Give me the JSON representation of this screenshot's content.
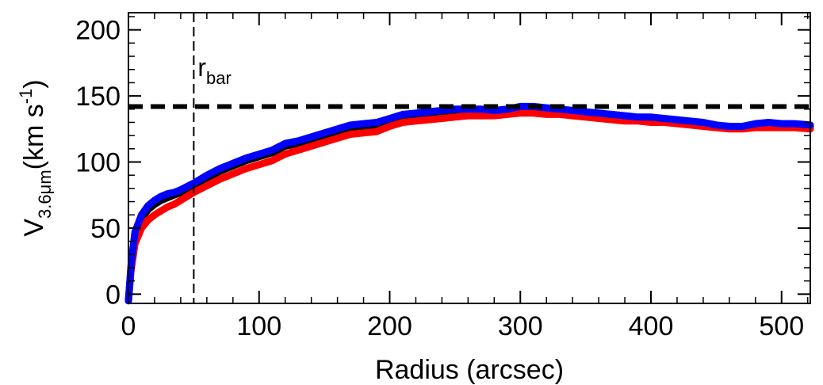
{
  "chart_data": {
    "type": "line",
    "title": "",
    "xlabel": "Radius (arcsec)",
    "ylabel": {
      "main": "V",
      "sub": "3.6μm",
      "unit_open": "(km s",
      "unit_sup": "-1",
      "unit_close": ")"
    },
    "xlim": [
      0,
      522
    ],
    "ylim": [
      -7,
      213
    ],
    "x_ticks": [
      0,
      100,
      200,
      300,
      400,
      500
    ],
    "y_ticks": [
      0,
      50,
      100,
      150,
      200
    ],
    "grid": false,
    "legend": "none",
    "series": [
      {
        "color": "#000000",
        "x": [
          0,
          2,
          5,
          10,
          15,
          20,
          25,
          30,
          35,
          40,
          50,
          60,
          70,
          80,
          90,
          100,
          110,
          120,
          130,
          140,
          150,
          160,
          170,
          180,
          190,
          200,
          210,
          220,
          230,
          240,
          250,
          260,
          270,
          280,
          290,
          300,
          310,
          320,
          330,
          340,
          350,
          360,
          370,
          380,
          390,
          400,
          410,
          420,
          430,
          440,
          450,
          460,
          470,
          480,
          490,
          500,
          510,
          522
        ],
        "y": [
          -5,
          20,
          45,
          57,
          64,
          68,
          71,
          73,
          75,
          77,
          82,
          88,
          93,
          97,
          101,
          104,
          107,
          112,
          114,
          117,
          120,
          123,
          126,
          127,
          128,
          131,
          134,
          135,
          136,
          137,
          138,
          139,
          139,
          138,
          139,
          141,
          141,
          140,
          139,
          138,
          137,
          136,
          135,
          134,
          133,
          133,
          132,
          131,
          130,
          129,
          127,
          126,
          126,
          128,
          129,
          128,
          128,
          127
        ]
      },
      {
        "color": "#ff0000",
        "x": [
          0,
          2,
          5,
          10,
          15,
          20,
          25,
          30,
          35,
          40,
          50,
          60,
          70,
          80,
          90,
          100,
          110,
          120,
          130,
          140,
          150,
          160,
          170,
          180,
          190,
          200,
          210,
          220,
          230,
          240,
          250,
          260,
          270,
          280,
          290,
          300,
          310,
          320,
          330,
          340,
          350,
          360,
          370,
          380,
          390,
          400,
          410,
          420,
          430,
          440,
          450,
          460,
          470,
          480,
          490,
          500,
          510,
          522
        ],
        "y": [
          -5,
          18,
          38,
          50,
          56,
          60,
          63,
          66,
          68,
          71,
          77,
          82,
          87,
          91,
          95,
          98,
          101,
          106,
          109,
          112,
          115,
          118,
          121,
          122,
          123,
          127,
          130,
          131,
          132,
          133,
          134,
          135,
          135,
          135,
          136,
          137,
          137,
          136,
          136,
          135,
          134,
          133,
          132,
          131,
          131,
          130,
          130,
          129,
          128,
          127,
          126,
          125,
          125,
          126,
          126,
          126,
          126,
          125
        ]
      },
      {
        "color": "#0000ff",
        "x": [
          0,
          2,
          5,
          10,
          15,
          20,
          25,
          30,
          35,
          40,
          50,
          60,
          70,
          80,
          90,
          100,
          110,
          120,
          130,
          140,
          150,
          160,
          170,
          180,
          190,
          200,
          210,
          220,
          230,
          240,
          250,
          260,
          270,
          280,
          290,
          300,
          310,
          320,
          330,
          340,
          350,
          360,
          370,
          380,
          390,
          400,
          410,
          420,
          430,
          440,
          450,
          460,
          470,
          480,
          490,
          500,
          510,
          522
        ],
        "y": [
          -5,
          22,
          47,
          60,
          67,
          71,
          74,
          76,
          77,
          79,
          84,
          90,
          95,
          99,
          103,
          106,
          109,
          114,
          116,
          119,
          122,
          125,
          128,
          129,
          130,
          133,
          136,
          137,
          138,
          139,
          140,
          140,
          140,
          139,
          140,
          142,
          142,
          141,
          140,
          139,
          138,
          137,
          136,
          135,
          134,
          134,
          133,
          132,
          131,
          130,
          128,
          127,
          127,
          129,
          130,
          129,
          129,
          128
        ]
      }
    ],
    "reference_lines": {
      "horizontal_y": 142,
      "vertical_x": 50
    },
    "annotations": [
      {
        "text_main": "r",
        "text_sub": "bar",
        "x": 53,
        "y": 165
      }
    ]
  }
}
